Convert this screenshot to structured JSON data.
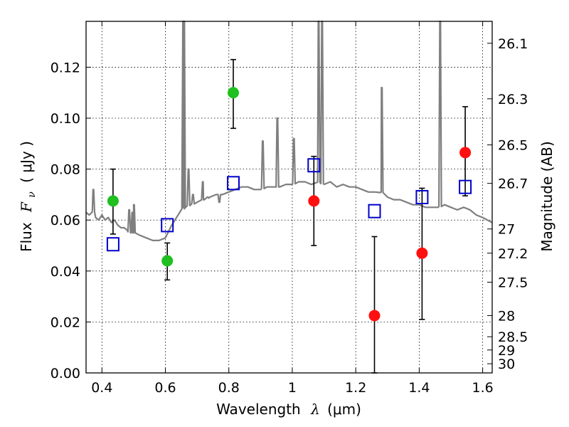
{
  "chart_data": {
    "type": "scatter",
    "xlabel": {
      "prefix": "Wavelength",
      "symbol": "λ",
      "unit": "(μm)"
    },
    "ylabel": {
      "prefix": "Flux",
      "symbol": "F",
      "subscript": "ν",
      "unit": "( μJy )"
    },
    "ylabel_right": "Magnitude (AB)",
    "xlim": [
      0.35,
      1.63
    ],
    "ylim": [
      0.0,
      0.138
    ],
    "grid": true,
    "xticks": [
      0.4,
      0.6,
      0.8,
      1.0,
      1.2,
      1.4,
      1.6
    ],
    "xtick_labels": [
      "0.4",
      "0.6",
      "0.8",
      "1",
      "1.2",
      "1.4",
      "1.6"
    ],
    "yticks": [
      0.0,
      0.02,
      0.04,
      0.06,
      0.08,
      0.1,
      0.12
    ],
    "ytick_labels": [
      "0.00",
      "0.02",
      "0.04",
      "0.06",
      "0.08",
      "0.10",
      "0.12"
    ],
    "right_ticks": [
      {
        "label": "26.1",
        "flux": 0.1294
      },
      {
        "label": "26.3",
        "flux": 0.1076
      },
      {
        "label": "26.5",
        "flux": 0.0895
      },
      {
        "label": "26.7",
        "flux": 0.0744
      },
      {
        "label": "27",
        "flux": 0.0565
      },
      {
        "label": "27.2",
        "flux": 0.047
      },
      {
        "label": "27.5",
        "flux": 0.0356
      },
      {
        "label": "28",
        "flux": 0.0225
      },
      {
        "label": "28.5",
        "flux": 0.0142
      },
      {
        "label": "29",
        "flux": 0.009
      },
      {
        "label": "30",
        "flux": 0.0036
      }
    ],
    "series": [
      {
        "name": "green points",
        "color": "#1fc01f",
        "points": [
          {
            "x": 0.435,
            "y": 0.0675,
            "err_low": 0.0545,
            "err_high": 0.08
          },
          {
            "x": 0.606,
            "y": 0.044,
            "err_low": 0.0365,
            "err_high": 0.051
          },
          {
            "x": 0.814,
            "y": 0.11,
            "err_low": 0.096,
            "err_high": 0.123
          }
        ]
      },
      {
        "name": "red points",
        "color": "#ff1010",
        "points": [
          {
            "x": 1.068,
            "y": 0.0675,
            "err_low": 0.05,
            "err_high": 0.085
          },
          {
            "x": 1.259,
            "y": 0.0225,
            "err_low": 0.0,
            "err_high": 0.0535
          },
          {
            "x": 1.409,
            "y": 0.047,
            "err_low": 0.021,
            "err_high": 0.0725
          },
          {
            "x": 1.545,
            "y": 0.0865,
            "err_low": 0.0695,
            "err_high": 0.1045
          }
        ]
      },
      {
        "name": "model photometry",
        "color": "#0000cc",
        "points": [
          {
            "x": 0.435,
            "y": 0.0505
          },
          {
            "x": 0.606,
            "y": 0.058
          },
          {
            "x": 0.814,
            "y": 0.0745
          },
          {
            "x": 1.068,
            "y": 0.0815
          },
          {
            "x": 1.259,
            "y": 0.0635
          },
          {
            "x": 1.409,
            "y": 0.069
          },
          {
            "x": 1.545,
            "y": 0.073
          }
        ]
      }
    ],
    "spectrum": {
      "name": "model spectrum",
      "color": "#7f7f7f",
      "continuum": [
        [
          0.35,
          0.063
        ],
        [
          0.36,
          0.062
        ],
        [
          0.37,
          0.064
        ],
        [
          0.38,
          0.061
        ],
        [
          0.39,
          0.06
        ],
        [
          0.4,
          0.062
        ],
        [
          0.41,
          0.06
        ],
        [
          0.42,
          0.061
        ],
        [
          0.43,
          0.059
        ],
        [
          0.44,
          0.06
        ],
        [
          0.45,
          0.058
        ],
        [
          0.46,
          0.057
        ],
        [
          0.47,
          0.057
        ],
        [
          0.48,
          0.056
        ],
        [
          0.49,
          0.055
        ],
        [
          0.5,
          0.055
        ],
        [
          0.52,
          0.054
        ],
        [
          0.54,
          0.053
        ],
        [
          0.56,
          0.052
        ],
        [
          0.58,
          0.052
        ],
        [
          0.6,
          0.053
        ],
        [
          0.62,
          0.058
        ],
        [
          0.64,
          0.062
        ],
        [
          0.66,
          0.065
        ],
        [
          0.68,
          0.066
        ],
        [
          0.7,
          0.067
        ],
        [
          0.72,
          0.068
        ],
        [
          0.74,
          0.069
        ],
        [
          0.76,
          0.07
        ],
        [
          0.78,
          0.07
        ],
        [
          0.8,
          0.071
        ],
        [
          0.82,
          0.072
        ],
        [
          0.84,
          0.073
        ],
        [
          0.86,
          0.073
        ],
        [
          0.88,
          0.072
        ],
        [
          0.9,
          0.072
        ],
        [
          0.92,
          0.073
        ],
        [
          0.94,
          0.073
        ],
        [
          0.96,
          0.073
        ],
        [
          0.98,
          0.074
        ],
        [
          1.0,
          0.074
        ],
        [
          1.02,
          0.075
        ],
        [
          1.04,
          0.075
        ],
        [
          1.06,
          0.074
        ],
        [
          1.08,
          0.075
        ],
        [
          1.1,
          0.074
        ],
        [
          1.12,
          0.075
        ],
        [
          1.14,
          0.073
        ],
        [
          1.16,
          0.074
        ],
        [
          1.18,
          0.073
        ],
        [
          1.2,
          0.073
        ],
        [
          1.22,
          0.072
        ],
        [
          1.24,
          0.071
        ],
        [
          1.26,
          0.071
        ],
        [
          1.28,
          0.071
        ],
        [
          1.3,
          0.069
        ],
        [
          1.32,
          0.068
        ],
        [
          1.34,
          0.068
        ],
        [
          1.36,
          0.067
        ],
        [
          1.38,
          0.066
        ],
        [
          1.4,
          0.066
        ],
        [
          1.42,
          0.065
        ],
        [
          1.44,
          0.065
        ],
        [
          1.46,
          0.065
        ],
        [
          1.48,
          0.066
        ],
        [
          1.5,
          0.065
        ],
        [
          1.52,
          0.064
        ],
        [
          1.54,
          0.065
        ],
        [
          1.56,
          0.064
        ],
        [
          1.58,
          0.062
        ],
        [
          1.6,
          0.061
        ],
        [
          1.63,
          0.059
        ]
      ],
      "lines": [
        {
          "x": 0.373,
          "peak": 0.072
        },
        {
          "x": 0.486,
          "peak": 0.064
        },
        {
          "x": 0.496,
          "peak": 0.063
        },
        {
          "x": 0.501,
          "peak": 0.066
        },
        {
          "x": 0.656,
          "peak": 0.138
        },
        {
          "x": 0.659,
          "peak": 0.138
        },
        {
          "x": 0.673,
          "peak": 0.08
        },
        {
          "x": 0.687,
          "peak": 0.07
        },
        {
          "x": 0.718,
          "peak": 0.075
        },
        {
          "x": 0.733,
          "peak": 0.069
        },
        {
          "x": 0.907,
          "peak": 0.091
        },
        {
          "x": 0.953,
          "peak": 0.1
        },
        {
          "x": 0.77,
          "peak": 0.067
        },
        {
          "x": 1.083,
          "peak": 0.138
        },
        {
          "x": 1.094,
          "peak": 0.138
        },
        {
          "x": 1.005,
          "peak": 0.092
        },
        {
          "x": 1.282,
          "peak": 0.112
        },
        {
          "x": 1.466,
          "peak": 0.138
        }
      ]
    }
  }
}
